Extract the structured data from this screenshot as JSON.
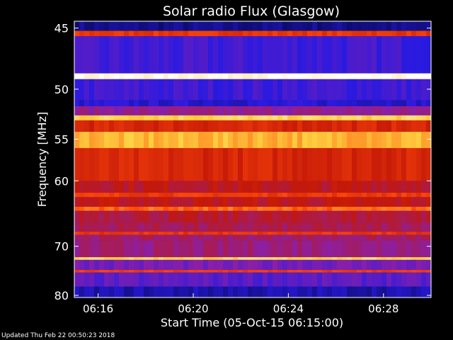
{
  "chart_data": {
    "type": "heatmap",
    "title": "Solar radio Flux (Glasgow)",
    "xlabel": "Start Time (05-Oct-15 06:15:00)",
    "ylabel": "Frequency [MHz]",
    "x_tick_labels": [
      "06:16",
      "06:20",
      "06:24",
      "06:28"
    ],
    "x_ticks_minutes": [
      1,
      5,
      9,
      13
    ],
    "y_ticks": [
      45,
      50,
      55,
      60,
      70,
      80
    ],
    "xlim_minutes": [
      0,
      15
    ],
    "ylim_mhz": [
      44.5,
      80.5
    ],
    "y_scale": "reciprocal",
    "colormap": [
      "#0a0a60",
      "#2a1ae0",
      "#8a1fa8",
      "#c41808",
      "#ff4a0a",
      "#ffd040",
      "#ffffff"
    ],
    "band_levels": [
      {
        "f": [
          44.5,
          45.2
        ],
        "level": 0.05
      },
      {
        "f": [
          45.2,
          45.6
        ],
        "level": 0.6
      },
      {
        "f": [
          45.6,
          48.6
        ],
        "level": 0.2
      },
      {
        "f": [
          48.6,
          49.1
        ],
        "level": 0.98
      },
      {
        "f": [
          49.1,
          51.0
        ],
        "level": 0.2
      },
      {
        "f": [
          51.0,
          51.6
        ],
        "level": 0.15
      },
      {
        "f": [
          51.6,
          52.5
        ],
        "level": 0.35
      },
      {
        "f": [
          52.5,
          53.0
        ],
        "level": 0.85
      },
      {
        "f": [
          53.0,
          54.2
        ],
        "level": 0.55
      },
      {
        "f": [
          54.2,
          56.0
        ],
        "level": 0.8
      },
      {
        "f": [
          56.0,
          60.0
        ],
        "level": 0.55
      },
      {
        "f": [
          60.0,
          61.6
        ],
        "level": 0.48
      },
      {
        "f": [
          61.6,
          62.2
        ],
        "level": 0.62
      },
      {
        "f": [
          62.2,
          63.6
        ],
        "level": 0.48
      },
      {
        "f": [
          63.6,
          64.2
        ],
        "level": 0.7
      },
      {
        "f": [
          64.2,
          66.0
        ],
        "level": 0.45
      },
      {
        "f": [
          66.0,
          67.5
        ],
        "level": 0.42
      },
      {
        "f": [
          67.5,
          68.0
        ],
        "level": 0.6
      },
      {
        "f": [
          68.0,
          69.0
        ],
        "level": 0.4
      },
      {
        "f": [
          69.0,
          72.0
        ],
        "level": 0.38
      },
      {
        "f": [
          72.0,
          72.5
        ],
        "level": 0.85
      },
      {
        "f": [
          72.5,
          74.5
        ],
        "level": 0.3
      },
      {
        "f": [
          74.5,
          75.0
        ],
        "level": 0.62
      },
      {
        "f": [
          75.0,
          78.0
        ],
        "level": 0.25
      },
      {
        "f": [
          78.0,
          80.5
        ],
        "level": 0.1
      }
    ]
  },
  "footer": "Updated Thu Feb 22 00:50:23 2018"
}
